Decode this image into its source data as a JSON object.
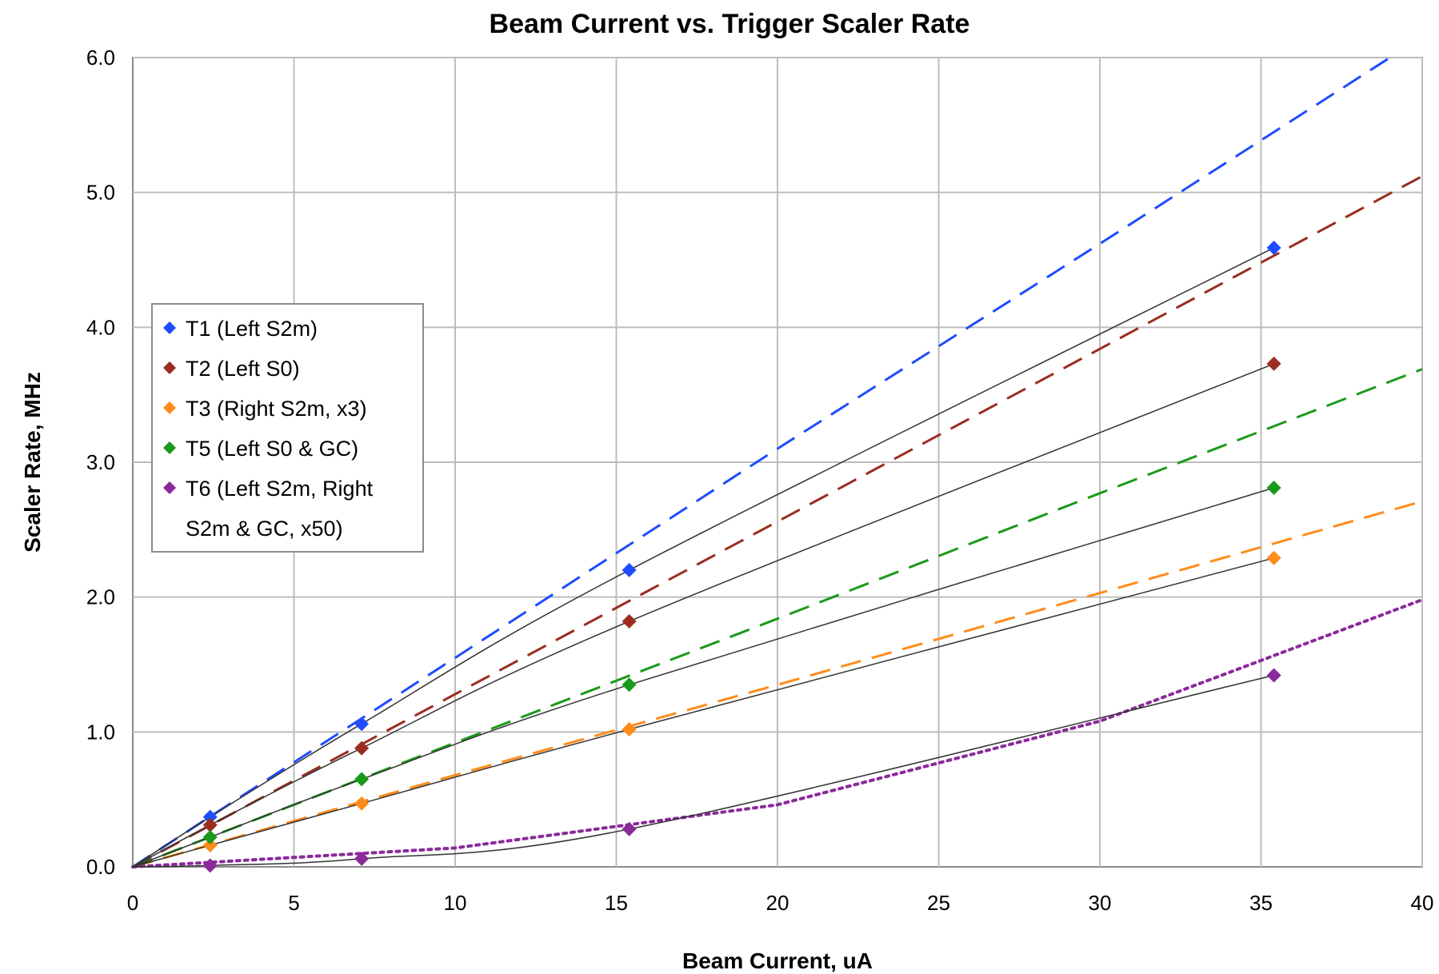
{
  "chart_data": {
    "type": "scatter",
    "title": "Beam Current vs. Trigger Scaler Rate",
    "xlabel": "Beam Current, uA",
    "ylabel": "Scaler Rate, MHz",
    "xlim": [
      0,
      40
    ],
    "ylim": [
      0,
      6
    ],
    "x_ticks": [
      "0",
      "5",
      "10",
      "15",
      "20",
      "25",
      "30",
      "35",
      "40"
    ],
    "y_ticks": [
      "0.0",
      "1.0",
      "2.0",
      "3.0",
      "4.0",
      "5.0",
      "6.0"
    ],
    "grid": true,
    "legend_position": "left-middle",
    "series": [
      {
        "name": "T1 (Left S2m)",
        "color": "#1f4cff",
        "x": [
          2.4,
          7.1,
          15.4,
          35.4
        ],
        "y": [
          0.37,
          1.06,
          2.2,
          4.59
        ],
        "trend": {
          "style": "dashed",
          "x": [
            0,
            10,
            20,
            30,
            39
          ],
          "y": [
            0,
            1.55,
            3.1,
            4.62,
            6.0
          ]
        }
      },
      {
        "name": "T2 (Left S0)",
        "color": "#9b2d1f",
        "x": [
          2.4,
          7.1,
          15.4,
          35.4
        ],
        "y": [
          0.31,
          0.88,
          1.82,
          3.73
        ],
        "trend": {
          "style": "dashed",
          "x": [
            0,
            10,
            20,
            30,
            40
          ],
          "y": [
            0,
            1.28,
            2.56,
            3.84,
            5.12
          ]
        }
      },
      {
        "name": "T3 (Right S2m, x3)",
        "color": "#ff8c1a",
        "x": [
          2.4,
          7.1,
          15.4,
          35.4
        ],
        "y": [
          0.16,
          0.47,
          1.02,
          2.29
        ],
        "trend": {
          "style": "dashed",
          "x": [
            0,
            10,
            20,
            30,
            40
          ],
          "y": [
            0,
            0.68,
            1.35,
            2.03,
            2.71
          ]
        }
      },
      {
        "name": "T5 (Left S0 & GC)",
        "color": "#1a9a1a",
        "x": [
          2.4,
          7.1,
          15.4,
          35.4
        ],
        "y": [
          0.22,
          0.65,
          1.35,
          2.81
        ],
        "trend": {
          "style": "dashed",
          "x": [
            0,
            10,
            20,
            30,
            40
          ],
          "y": [
            0,
            0.92,
            1.84,
            2.77,
            3.69
          ]
        }
      },
      {
        "name": "T6 (Left S2m, Right S2m & GC, x50)",
        "legend_lines": [
          "T6 (Left S2m, Right",
          "S2m & GC, x50)"
        ],
        "color": "#8b2a9b",
        "x": [
          2.4,
          7.1,
          15.4,
          35.4
        ],
        "y": [
          0.01,
          0.06,
          0.28,
          1.42
        ],
        "trend": {
          "style": "dotted",
          "x": [
            0,
            10,
            20,
            30,
            40
          ],
          "y": [
            0,
            0.14,
            0.46,
            1.08,
            1.98
          ]
        }
      }
    ]
  }
}
